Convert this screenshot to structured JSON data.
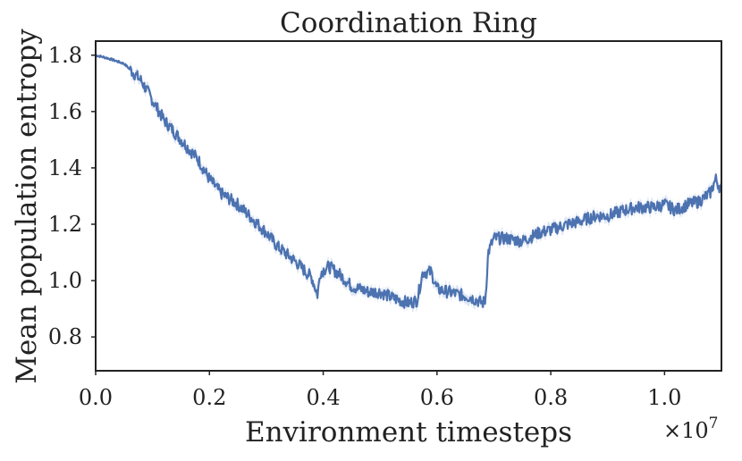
{
  "chart_data": {
    "type": "line",
    "title": "Coordination Ring",
    "xlabel": "Environment timesteps",
    "ylabel": "Mean population entropy",
    "x_offset_label": "×10",
    "x_offset_exponent": "7",
    "xlim": [
      0.0,
      1.1
    ],
    "ylim": [
      0.68,
      1.85
    ],
    "xticks": [
      0.0,
      0.2,
      0.4,
      0.6,
      0.8,
      1.0
    ],
    "xtick_labels": [
      "0.0",
      "0.2",
      "0.4",
      "0.6",
      "0.8",
      "1.0"
    ],
    "yticks": [
      0.8,
      1.0,
      1.2,
      1.4,
      1.6,
      1.8
    ],
    "ytick_labels": [
      "0.8",
      "1.0",
      "1.2",
      "1.4",
      "1.6",
      "1.8"
    ],
    "grid": false,
    "legend": "none",
    "colors": {
      "line": "#4c72b0",
      "band": "#c8d6ec",
      "axes": "#222222"
    },
    "series": [
      {
        "x": [
          0.0,
          0.02,
          0.05,
          0.08,
          0.1,
          0.12,
          0.15,
          0.18,
          0.2,
          0.22,
          0.25,
          0.28,
          0.3,
          0.32,
          0.35,
          0.38,
          0.39,
          0.395,
          0.41,
          0.43,
          0.45,
          0.48,
          0.5,
          0.52,
          0.55,
          0.565,
          0.575,
          0.59,
          0.6,
          0.62,
          0.64,
          0.66,
          0.68,
          0.685,
          0.69,
          0.7,
          0.72,
          0.75,
          0.78,
          0.8,
          0.83,
          0.85,
          0.88,
          0.9,
          0.93,
          0.95,
          0.98,
          1.0,
          1.02,
          1.04,
          1.06,
          1.08,
          1.09,
          1.1
        ],
        "y": [
          1.8,
          1.79,
          1.77,
          1.71,
          1.64,
          1.57,
          1.5,
          1.43,
          1.36,
          1.31,
          1.27,
          1.21,
          1.17,
          1.12,
          1.07,
          1.01,
          0.95,
          1.03,
          1.05,
          1.02,
          0.98,
          0.96,
          0.96,
          0.94,
          0.92,
          0.93,
          1.03,
          1.03,
          0.97,
          0.96,
          0.95,
          0.94,
          0.92,
          0.93,
          1.1,
          1.15,
          1.15,
          1.14,
          1.17,
          1.18,
          1.2,
          1.21,
          1.23,
          1.23,
          1.25,
          1.26,
          1.26,
          1.27,
          1.25,
          1.27,
          1.28,
          1.31,
          1.36,
          1.32
        ]
      }
    ]
  }
}
